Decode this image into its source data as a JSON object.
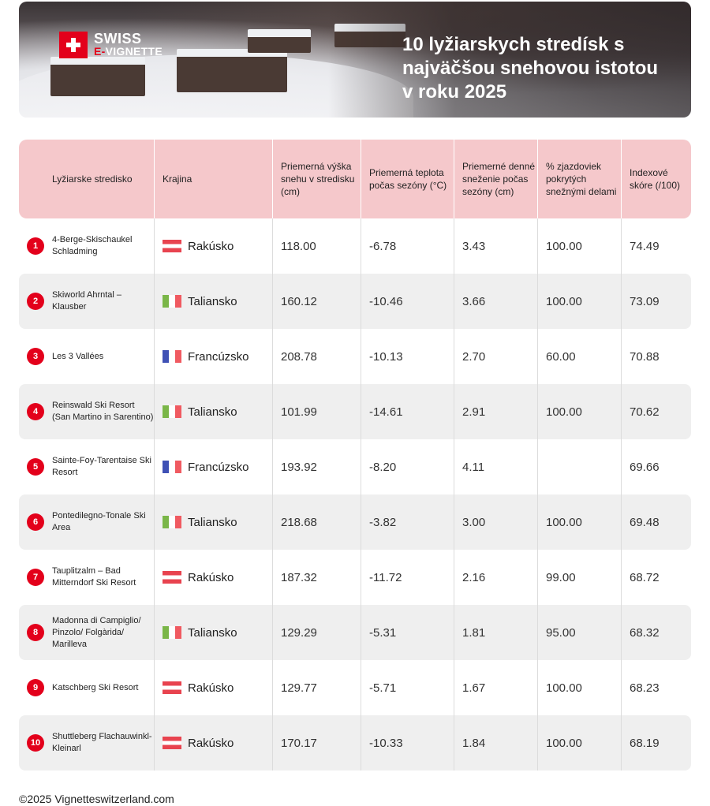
{
  "brand": {
    "line1": "SWISS",
    "line2_e": "E-",
    "line2_rest": "VIGNETTE"
  },
  "title": "10 lyžiarskych stredísk s najväčšou snehovou istotou v roku 2025",
  "colors": {
    "accent": "#e3001b",
    "header_bg": "#f5c8cb",
    "row_alt": "#efefef"
  },
  "table": {
    "headers": [
      "Lyžiarske stredisko",
      "Krajina",
      "Priemerná výška snehu v stredisku (cm)",
      "Priemerná teplota počas sezóny (°C)",
      "Priemerné denné sneženie počas sezóny (cm)",
      "% zjazdoviek pokrytých snežnými delami",
      "Indexové skóre (/100)"
    ],
    "rows": [
      {
        "rank": "1",
        "resort": "4-Berge-Skischaukel Schladming",
        "flag": "at",
        "country": "Rakúsko",
        "snow_depth": "118.00",
        "temp": "-6.78",
        "snowfall": "3.43",
        "cannons": "100.00",
        "score": "74.49"
      },
      {
        "rank": "2",
        "resort": "Skiworld Ahrntal – Klausber",
        "flag": "it",
        "country": "Taliansko",
        "snow_depth": "160.12",
        "temp": "-10.46",
        "snowfall": "3.66",
        "cannons": "100.00",
        "score": "73.09"
      },
      {
        "rank": "3",
        "resort": "Les 3 Vallées",
        "flag": "fr",
        "country": "Francúzsko",
        "snow_depth": "208.78",
        "temp": "-10.13",
        "snowfall": "2.70",
        "cannons": "60.00",
        "score": "70.88"
      },
      {
        "rank": "4",
        "resort": "Reinswald Ski Resort (San Martino in Sarentino)",
        "flag": "it",
        "country": "Taliansko",
        "snow_depth": "101.99",
        "temp": "-14.61",
        "snowfall": "2.91",
        "cannons": "100.00",
        "score": "70.62"
      },
      {
        "rank": "5",
        "resort": "Sainte-Foy-Tarentaise Ski Resort",
        "flag": "fr",
        "country": "Francúzsko",
        "snow_depth": "193.92",
        "temp": "-8.20",
        "snowfall": "4.11",
        "cannons": "",
        "score": "69.66"
      },
      {
        "rank": "6",
        "resort": "Pontedilegno-Tonale Ski Area",
        "flag": "it",
        "country": "Taliansko",
        "snow_depth": "218.68",
        "temp": "-3.82",
        "snowfall": "3.00",
        "cannons": "100.00",
        "score": "69.48"
      },
      {
        "rank": "7",
        "resort": "Tauplitzalm – Bad Mitterndorf Ski Resort",
        "flag": "at",
        "country": "Rakúsko",
        "snow_depth": "187.32",
        "temp": "-11.72",
        "snowfall": "2.16",
        "cannons": "99.00",
        "score": "68.72"
      },
      {
        "rank": "8",
        "resort": "Madonna di Campiglio/ Pinzolo/ Folgàrida/ Marilleva",
        "flag": "it",
        "country": "Taliansko",
        "snow_depth": "129.29",
        "temp": "-5.31",
        "snowfall": "1.81",
        "cannons": "95.00",
        "score": "68.32"
      },
      {
        "rank": "9",
        "resort": "Katschberg Ski Resort",
        "flag": "at",
        "country": "Rakúsko",
        "snow_depth": "129.77",
        "temp": "-5.71",
        "snowfall": "1.67",
        "cannons": "100.00",
        "score": "68.23"
      },
      {
        "rank": "10",
        "resort": "Shuttleberg Flachauwinkl- Kleinarl",
        "flag": "at",
        "country": "Rakúsko",
        "snow_depth": "170.17",
        "temp": "-10.33",
        "snowfall": "1.84",
        "cannons": "100.00",
        "score": "68.19"
      }
    ]
  },
  "footer": "©2025 Vignetteswitzerland.com"
}
